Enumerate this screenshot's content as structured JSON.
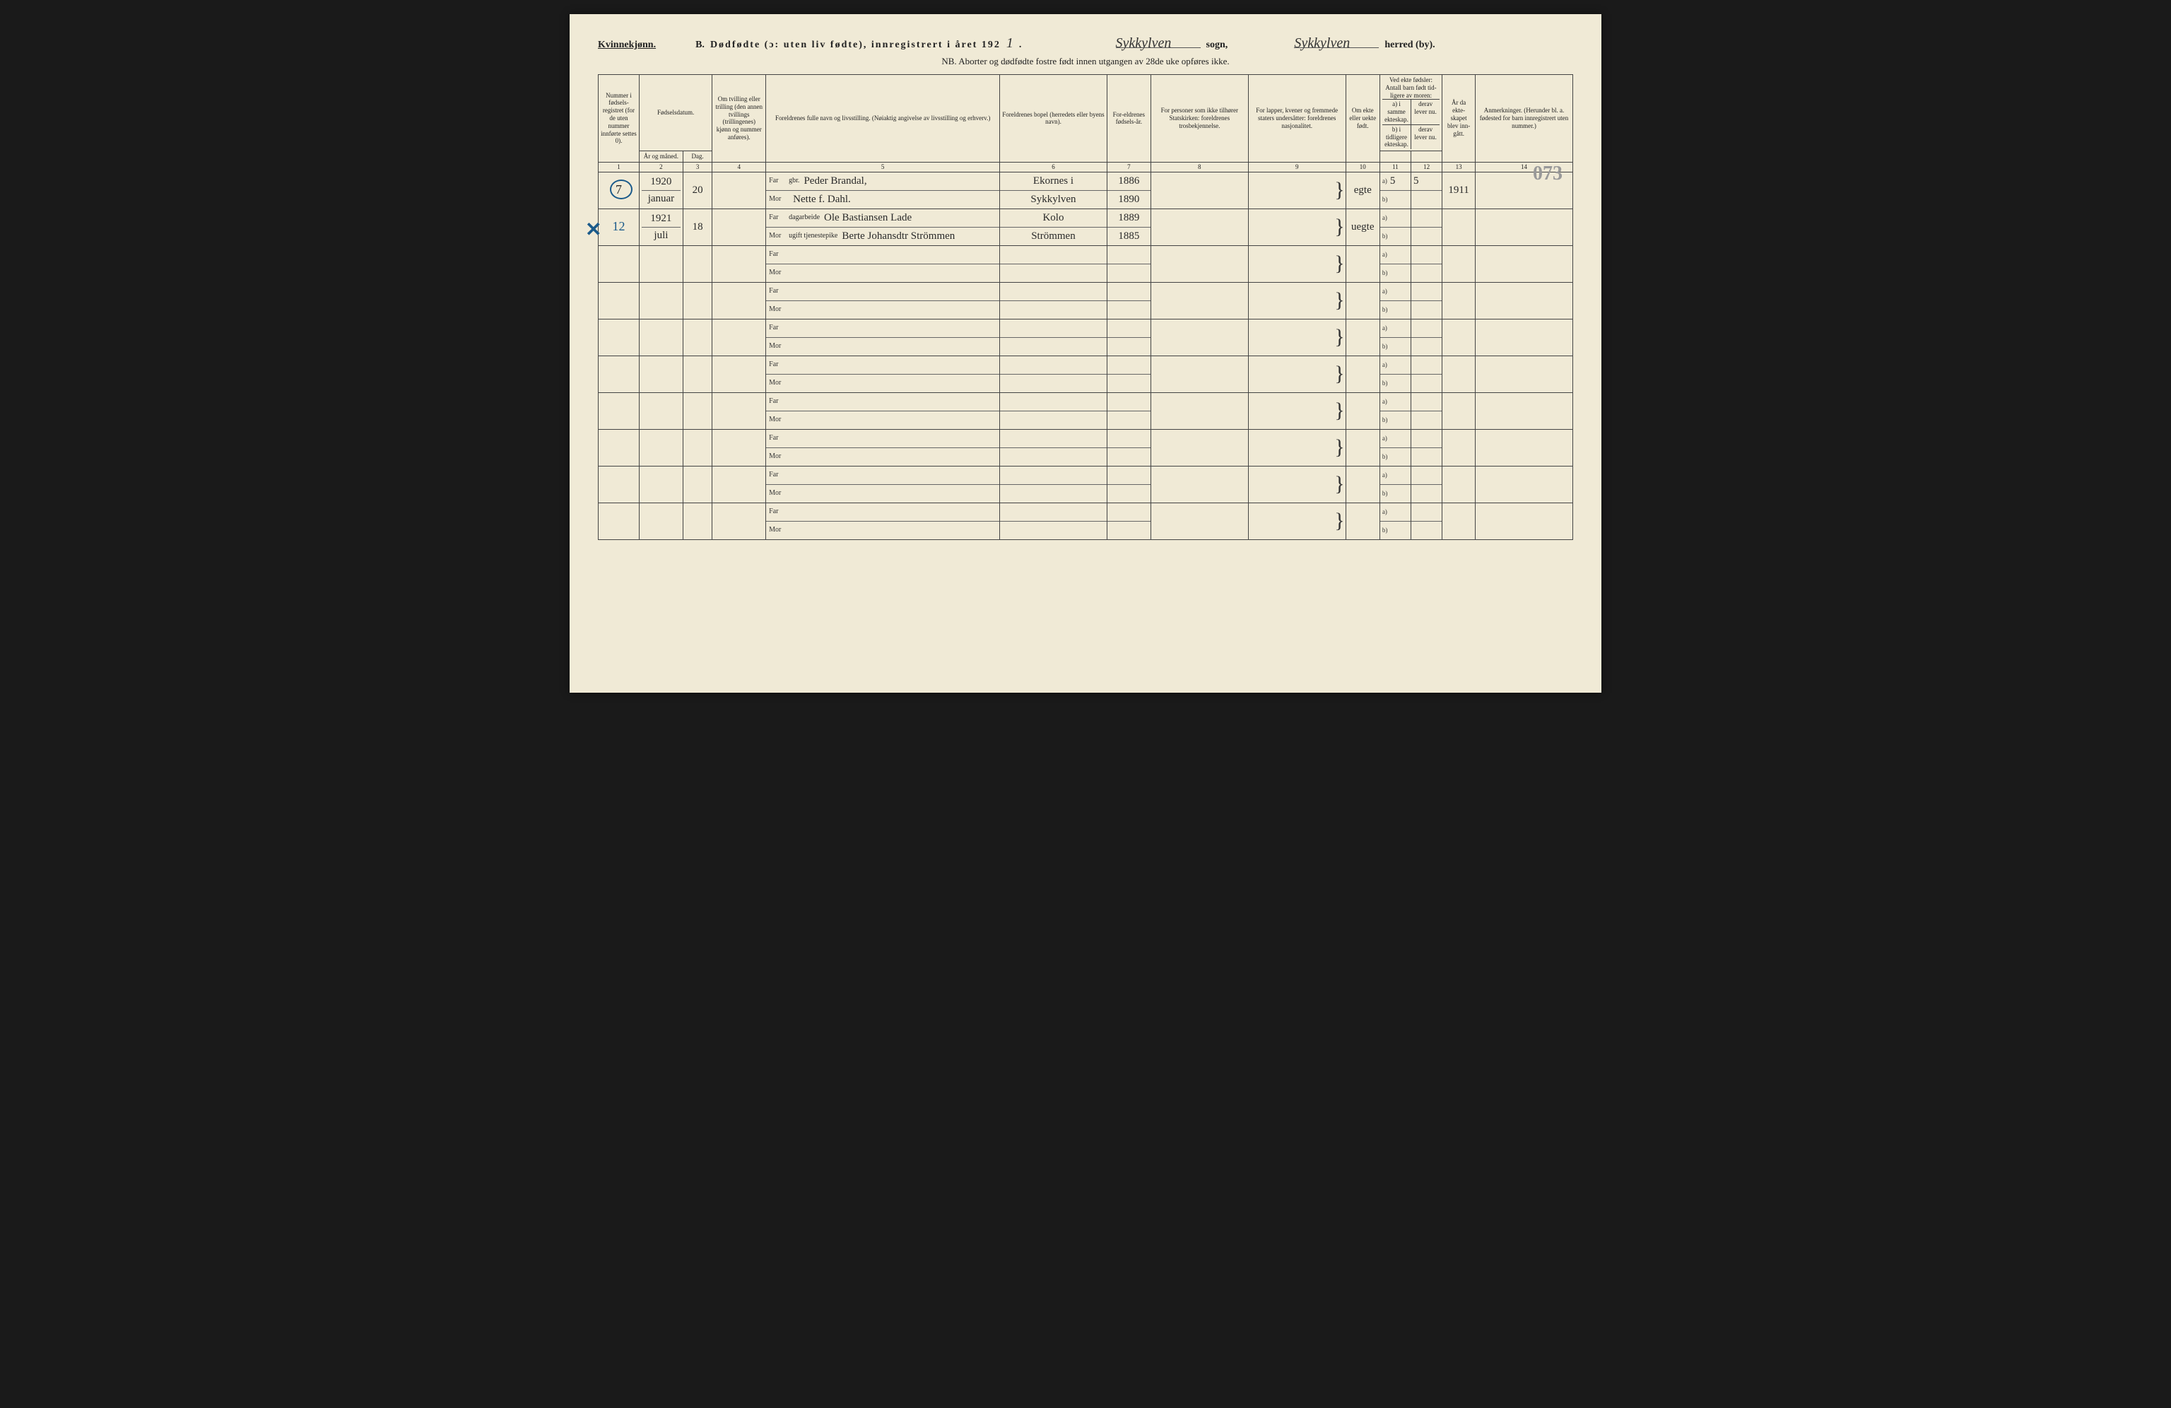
{
  "header": {
    "gender_label": "Kvinnekjønn.",
    "section": "B.",
    "title_main": "Dødfødte (ɔ: uten liv fødte), innregistrert i året 192",
    "year_digit": "1",
    "sogn_prefix": "",
    "sogn_handwritten": "Sykkylven",
    "sogn_label": "sogn,",
    "herred_handwritten": "Sykkylven",
    "herred_label": "herred (by).",
    "nb": "NB. Aborter og dødfødte fostre født innen utgangen av 28de uke opføres ikke."
  },
  "columns": {
    "c1": "Nummer i fødsels-registret (for de uten nummer innførte settes 0).",
    "c2_group": "Fødselsdatum.",
    "c2": "År og måned.",
    "c3": "Dag.",
    "c4": "Om tvilling eller trilling (den annen tvillings (trillingenes) kjønn og nummer anføres).",
    "c5": "Foreldrenes fulle navn og livsstilling. (Nøiaktig angivelse av livsstilling og erhverv.)",
    "c6": "Foreldrenes bopel (herredets eller byens navn).",
    "c7": "For-eldrenes fødsels-år.",
    "c8": "For personer som ikke tilhører Statskirken: foreldrenes trosbekjennelse.",
    "c9": "For lapper, kvener og fremmede staters undersåtter: foreldrenes nasjonalitet.",
    "c10": "Om ekte eller uekte født.",
    "c11_group": "Ved ekte fødsler: Antall barn født tid-ligere av moren:",
    "c11": "a) i samme ekteskap.",
    "c12": "derav lever nu.",
    "c11b": "b) i tidligere ekteskap.",
    "c12b": "derav lever nu.",
    "c13": "År da ekte-skapet blev inn-gått.",
    "c14": "Anmerkninger. (Herunder bl. a. fødested for barn innregistrert uten nummer.)"
  },
  "colnums": [
    "1",
    "2",
    "3",
    "4",
    "5",
    "6",
    "7",
    "8",
    "9",
    "10",
    "11",
    "12",
    "13",
    "14"
  ],
  "far_label": "Far",
  "mor_label": "Mor",
  "a_label": "a)",
  "b_label": "b)",
  "page_number": "073",
  "blue_mark": "✕",
  "rows": [
    {
      "num": "7",
      "circled": true,
      "year_month": "1920 januar",
      "day": "20",
      "twin": "",
      "far_pretext": "gbr.",
      "far_name": "Peder Brandal,",
      "mor_name": "Nette f. Dahl.",
      "far_bopel": "Ekornes i",
      "mor_bopel": "Sykkylven",
      "far_year": "1886",
      "mor_year": "1890",
      "ekte": "egte",
      "a_val": "5",
      "a_lever": "5",
      "b_val": "",
      "b_lever": "",
      "year_married": "1911",
      "remark": ""
    },
    {
      "num": "12",
      "blue_num": true,
      "year_month": "1921 juli",
      "day": "18",
      "twin": "",
      "far_pretext": "dagarbeide",
      "far_name": "Ole Bastiansen Lade",
      "mor_pretext": "ugift tjenestepike",
      "mor_name": "Berte Johansdtr Strömmen",
      "far_bopel": "Kolo",
      "mor_bopel": "Strömmen",
      "far_year": "1889",
      "mor_year": "1885",
      "ekte": "uegte",
      "a_val": "",
      "a_lever": "",
      "b_val": "",
      "b_lever": "",
      "year_married": "",
      "remark": "",
      "underlined": true
    }
  ],
  "empty_rows": 8,
  "colors": {
    "page_bg": "#f0ead6",
    "ink": "#222222",
    "border": "#444444",
    "blue_pen": "#1a5a8a",
    "pencil": "#888888"
  },
  "col_widths_pct": [
    4.2,
    4.5,
    3.0,
    5.5,
    24,
    11,
    4.5,
    10,
    10,
    3.5,
    3.2,
    3.2,
    3.4,
    10
  ]
}
